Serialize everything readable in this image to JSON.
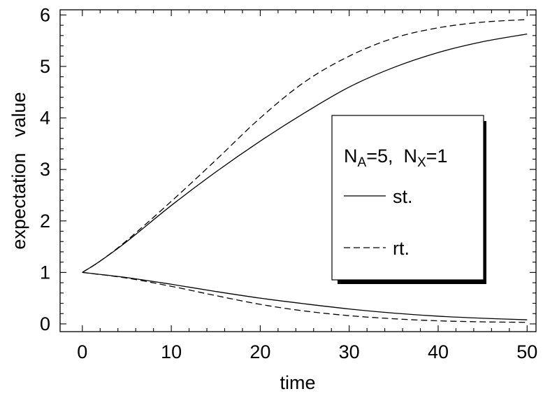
{
  "chart_data": {
    "type": "line",
    "title": "",
    "xlabel": "time",
    "ylabel": "expectation   value",
    "xlim": [
      -2.5,
      51
    ],
    "ylim": [
      -0.15,
      6.1
    ],
    "x_ticks": [
      0,
      10,
      20,
      30,
      40,
      50
    ],
    "y_ticks": [
      0,
      1,
      2,
      3,
      4,
      5,
      6
    ],
    "x_tick_labels": [
      "0",
      "10",
      "20",
      "30",
      "40",
      "50"
    ],
    "y_tick_labels": [
      "0",
      "1",
      "2",
      "3",
      "4",
      "5",
      "6"
    ],
    "grid": false,
    "legend": {
      "placement": "center-right",
      "header_parts": [
        "N",
        "A",
        "=5,  N",
        "X",
        "=1"
      ],
      "entries": [
        {
          "label": "st.",
          "style": "solid"
        },
        {
          "label": "rt.",
          "style": "dashed"
        }
      ]
    },
    "series": [
      {
        "style": "solid",
        "color": "#000000",
        "x": [
          0,
          2,
          5,
          10,
          15,
          20,
          25,
          30,
          35,
          40,
          45,
          50
        ],
        "y": [
          1.0,
          1.22,
          1.6,
          2.3,
          2.95,
          3.55,
          4.1,
          4.6,
          4.98,
          5.27,
          5.48,
          5.63
        ]
      },
      {
        "style": "dashed",
        "color": "#000000",
        "x": [
          0,
          2,
          5,
          10,
          15,
          20,
          25,
          30,
          35,
          40,
          45,
          50
        ],
        "y": [
          1.0,
          1.22,
          1.62,
          2.38,
          3.18,
          4.0,
          4.7,
          5.2,
          5.55,
          5.75,
          5.86,
          5.91
        ]
      },
      {
        "style": "solid",
        "color": "#000000",
        "x": [
          0,
          5,
          10,
          15,
          20,
          25,
          30,
          35,
          40,
          45,
          50
        ],
        "y": [
          1.0,
          0.9,
          0.77,
          0.63,
          0.5,
          0.39,
          0.29,
          0.21,
          0.15,
          0.11,
          0.08
        ]
      },
      {
        "style": "dashed",
        "color": "#000000",
        "x": [
          0,
          5,
          10,
          15,
          20,
          25,
          30,
          35,
          40,
          45,
          50
        ],
        "y": [
          1.0,
          0.89,
          0.73,
          0.55,
          0.38,
          0.25,
          0.16,
          0.1,
          0.06,
          0.04,
          0.03
        ]
      }
    ]
  }
}
